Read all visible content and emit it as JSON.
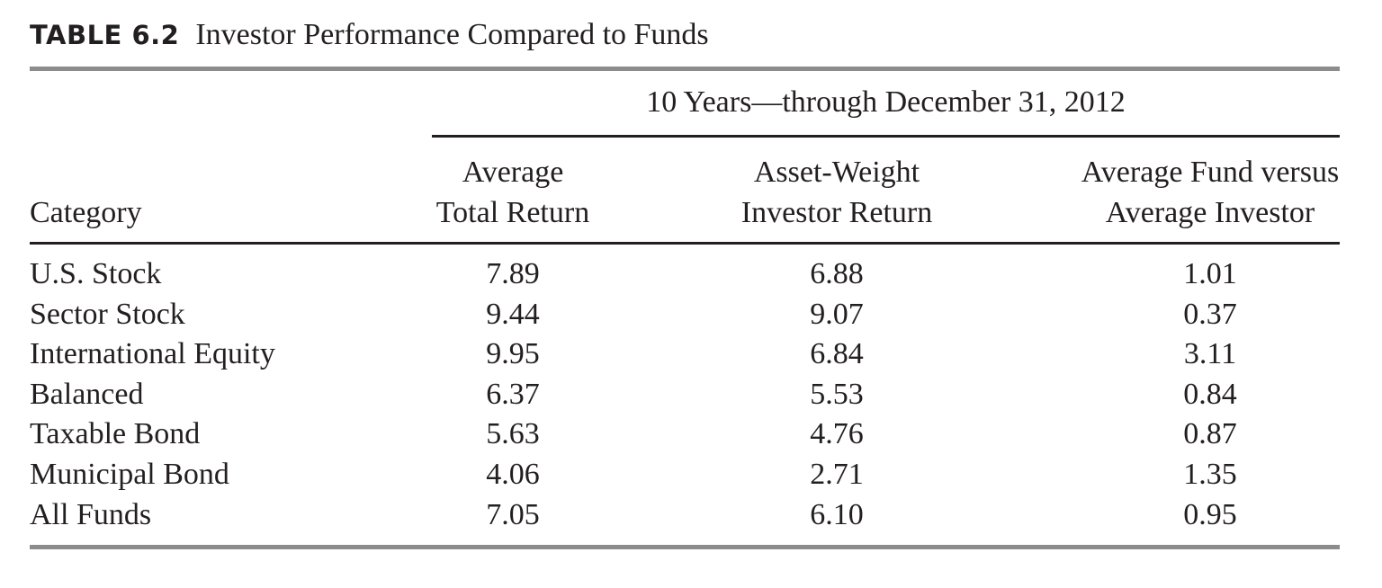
{
  "table": {
    "label": "TABLE 6.2",
    "title": "Investor Performance Compared to Funds",
    "span_header": "10 Years—through December 31, 2012",
    "columns": {
      "category": "Category",
      "avg_total_return": [
        "Average",
        "Total Return"
      ],
      "asset_weight_return": [
        "Asset-Weight",
        "Investor Return"
      ],
      "fund_vs_investor": [
        "Average Fund versus",
        "Average Investor"
      ]
    },
    "rows": [
      {
        "category": "U.S. Stock",
        "avg_total_return": "7.89",
        "asset_weight_return": "6.88",
        "fund_vs_investor": "1.01"
      },
      {
        "category": "Sector Stock",
        "avg_total_return": "9.44",
        "asset_weight_return": "9.07",
        "fund_vs_investor": "0.37"
      },
      {
        "category": "International Equity",
        "avg_total_return": "9.95",
        "asset_weight_return": "6.84",
        "fund_vs_investor": "3.11"
      },
      {
        "category": "Balanced",
        "avg_total_return": "6.37",
        "asset_weight_return": "5.53",
        "fund_vs_investor": "0.84"
      },
      {
        "category": "Taxable Bond",
        "avg_total_return": "5.63",
        "asset_weight_return": "4.76",
        "fund_vs_investor": "0.87"
      },
      {
        "category": "Municipal Bond",
        "avg_total_return": "4.06",
        "asset_weight_return": "2.71",
        "fund_vs_investor": "1.35"
      },
      {
        "category": "All Funds",
        "avg_total_return": "7.05",
        "asset_weight_return": "6.10",
        "fund_vs_investor": "0.95"
      }
    ]
  }
}
